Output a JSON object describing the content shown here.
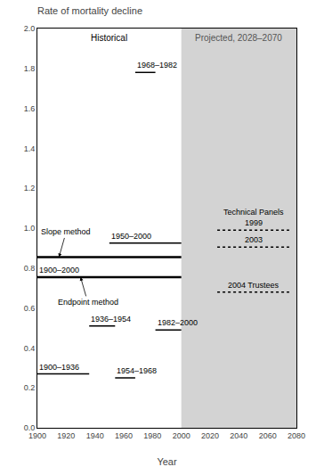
{
  "chart_data": {
    "type": "segments",
    "title": "Rate of mortality decline",
    "xlabel": "Year",
    "xlim": [
      1900,
      2080
    ],
    "ylim": [
      0,
      2.0
    ],
    "xticks": [
      1900,
      1920,
      1940,
      1960,
      1980,
      2000,
      2020,
      2040,
      2060,
      2080
    ],
    "yticks": [
      {
        "value": 0,
        "label": "0.0"
      },
      0.2,
      0.4,
      0.6,
      0.8,
      {
        "value": 1.0,
        "label": "1.0"
      },
      1.2,
      1.4,
      1.6,
      1.8,
      {
        "value": 2.0,
        "label": "2.0"
      }
    ],
    "grid": false,
    "historical_region": {
      "label": "Historical"
    },
    "projected_region": {
      "x": [
        2000,
        2080
      ],
      "label": "Projected, 2028–2070",
      "color": "#d3d3d3"
    },
    "segments": [
      {
        "x": [
          1900,
          1936
        ],
        "y": 0.27,
        "line_style": "solid",
        "label": "1900–1936"
      },
      {
        "x": [
          1936,
          1954
        ],
        "y": 0.51,
        "line_style": "solid",
        "label": "1936–1954"
      },
      {
        "x": [
          1954,
          1968
        ],
        "y": 0.25,
        "line_style": "solid",
        "label": "1954–1968"
      },
      {
        "x": [
          1968,
          1982
        ],
        "y": 1.78,
        "line_style": "solid",
        "label": "1968–1982"
      },
      {
        "x": [
          1982,
          2000
        ],
        "y": 0.49,
        "line_style": "solid",
        "label": "1982–2000"
      },
      {
        "x": [
          1950,
          2000
        ],
        "y": 0.925,
        "line_style": "solid",
        "label": "1950–2000"
      },
      {
        "x": [
          1900,
          2000
        ],
        "y": 0.855,
        "line_style": "thick",
        "annotation": "Slope method"
      },
      {
        "x": [
          1900,
          2000
        ],
        "y": 0.755,
        "line_style": "thick",
        "label": "1900–2000",
        "annotation": "Endpoint method"
      },
      {
        "x": [
          2025,
          2075
        ],
        "y": 0.99,
        "line_style": "dotted",
        "label": "1999",
        "group_title": "Technical Panels"
      },
      {
        "x": [
          2025,
          2075
        ],
        "y": 0.905,
        "line_style": "dotted",
        "label": "2003"
      },
      {
        "x": [
          2025,
          2075
        ],
        "y": 0.68,
        "line_style": "dotted",
        "label": "2004 Trustees"
      }
    ]
  }
}
